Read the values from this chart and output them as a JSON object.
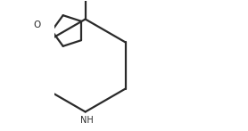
{
  "background_color": "#ffffff",
  "line_color": "#2a2a2a",
  "line_width": 1.6,
  "nh_label": "NH",
  "o_label": "O",
  "fig_width": 2.78,
  "fig_height": 1.47,
  "dpi": 100
}
